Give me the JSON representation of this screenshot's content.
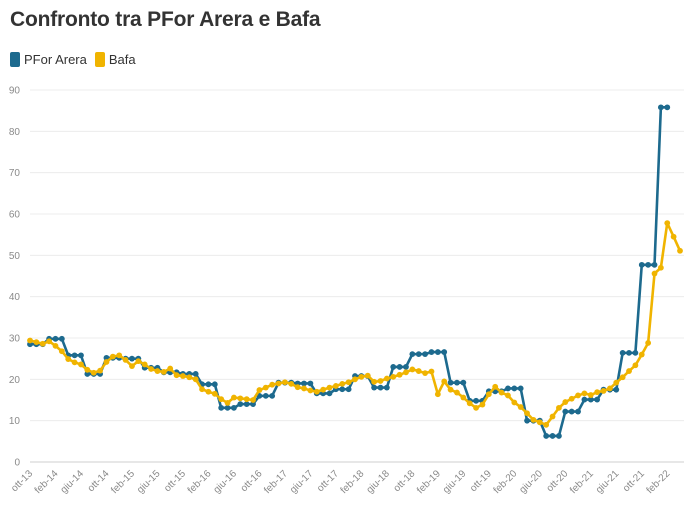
{
  "title": "Confronto tra PFor Arera e Bafa",
  "legend": [
    {
      "name": "PFor Arera",
      "color": "#1d6a8e"
    },
    {
      "name": "Bafa",
      "color": "#f0b400"
    }
  ],
  "chart_data": {
    "type": "line",
    "title": "Confronto tra PFor Arera e Bafa",
    "xlabel": "",
    "ylabel": "",
    "ylim": [
      0,
      90
    ],
    "yticks": [
      0,
      10,
      20,
      30,
      40,
      50,
      60,
      70,
      80,
      90
    ],
    "x_tick_labels": [
      {
        "index": 0,
        "label": "ott-13"
      },
      {
        "index": 4,
        "label": "feb-14"
      },
      {
        "index": 8,
        "label": "giu-14"
      },
      {
        "index": 12,
        "label": "ott-14"
      },
      {
        "index": 16,
        "label": "feb-15"
      },
      {
        "index": 20,
        "label": "giu-15"
      },
      {
        "index": 24,
        "label": "ott-15"
      },
      {
        "index": 28,
        "label": "feb-16"
      },
      {
        "index": 32,
        "label": "giu-16"
      },
      {
        "index": 36,
        "label": "ott-16"
      },
      {
        "index": 40,
        "label": "feb-17"
      },
      {
        "index": 44,
        "label": "giu-17"
      },
      {
        "index": 48,
        "label": "ott-17"
      },
      {
        "index": 52,
        "label": "feb-18"
      },
      {
        "index": 56,
        "label": "giu-18"
      },
      {
        "index": 60,
        "label": "ott-18"
      },
      {
        "index": 64,
        "label": "feb-19"
      },
      {
        "index": 68,
        "label": "giu-19"
      },
      {
        "index": 72,
        "label": "ott-19"
      },
      {
        "index": 76,
        "label": "feb-20"
      },
      {
        "index": 80,
        "label": "giu-20"
      },
      {
        "index": 84,
        "label": "ott-20"
      },
      {
        "index": 88,
        "label": "feb-21"
      },
      {
        "index": 92,
        "label": "giu-21"
      },
      {
        "index": 96,
        "label": "ott-21"
      },
      {
        "index": 100,
        "label": "feb-22"
      }
    ],
    "grid": true,
    "series": [
      {
        "name": "PFor Arera",
        "color": "#1d6a8e",
        "values": [
          28.5,
          28.5,
          28.5,
          29.8,
          29.8,
          29.8,
          25.8,
          25.8,
          25.8,
          21.3,
          21.3,
          21.3,
          25.2,
          25.2,
          25.2,
          25.0,
          25.0,
          25.0,
          22.8,
          22.8,
          22.8,
          21.7,
          21.7,
          21.7,
          21.3,
          21.3,
          21.3,
          18.8,
          18.8,
          18.8,
          13.1,
          13.1,
          13.1,
          14.0,
          14.0,
          14.0,
          16.0,
          16.0,
          16.0,
          19.2,
          19.2,
          19.2,
          19.0,
          19.0,
          19.0,
          16.6,
          16.6,
          16.6,
          17.6,
          17.6,
          17.6,
          20.8,
          20.8,
          20.8,
          18.0,
          18.0,
          18.0,
          23.0,
          23.0,
          23.0,
          26.1,
          26.1,
          26.1,
          26.6,
          26.6,
          26.6,
          19.2,
          19.2,
          19.2,
          14.8,
          14.8,
          14.8,
          17.1,
          17.1,
          17.1,
          17.8,
          17.8,
          17.8,
          10.0,
          10.0,
          10.0,
          6.3,
          6.3,
          6.3,
          12.2,
          12.2,
          12.2,
          15.1,
          15.1,
          15.1,
          17.5,
          17.5,
          17.5,
          26.4,
          26.4,
          26.4,
          47.7,
          47.7,
          47.7,
          85.8,
          85.8
        ]
      },
      {
        "name": "Bafa",
        "color": "#f0b400",
        "values": [
          29.4,
          29.0,
          28.6,
          29.2,
          28.1,
          26.8,
          24.9,
          24.1,
          23.6,
          22.3,
          21.6,
          22.1,
          24.2,
          25.5,
          25.8,
          24.7,
          23.2,
          24.4,
          23.6,
          22.5,
          22.0,
          21.8,
          22.6,
          21.0,
          20.8,
          20.5,
          20.0,
          17.6,
          17.0,
          16.5,
          15.2,
          14.3,
          15.6,
          15.4,
          15.2,
          15.0,
          17.4,
          18.0,
          18.7,
          19.0,
          19.3,
          18.9,
          18.1,
          17.8,
          17.3,
          17.0,
          17.5,
          18.0,
          18.4,
          18.9,
          19.3,
          20.0,
          20.6,
          20.9,
          19.4,
          19.6,
          20.2,
          20.6,
          21.1,
          21.7,
          22.4,
          22.0,
          21.5,
          21.9,
          16.4,
          19.5,
          17.5,
          16.8,
          15.6,
          14.2,
          13.1,
          13.9,
          16.4,
          18.2,
          16.8,
          16.1,
          14.4,
          13.3,
          11.8,
          10.2,
          9.6,
          9.0,
          11.0,
          13.1,
          14.5,
          15.3,
          16.1,
          16.6,
          16.2,
          16.9,
          17.2,
          17.8,
          19.2,
          20.5,
          22.0,
          23.4,
          26.0,
          28.8,
          45.6,
          47.0,
          57.8,
          54.5,
          51.1
        ]
      }
    ]
  }
}
